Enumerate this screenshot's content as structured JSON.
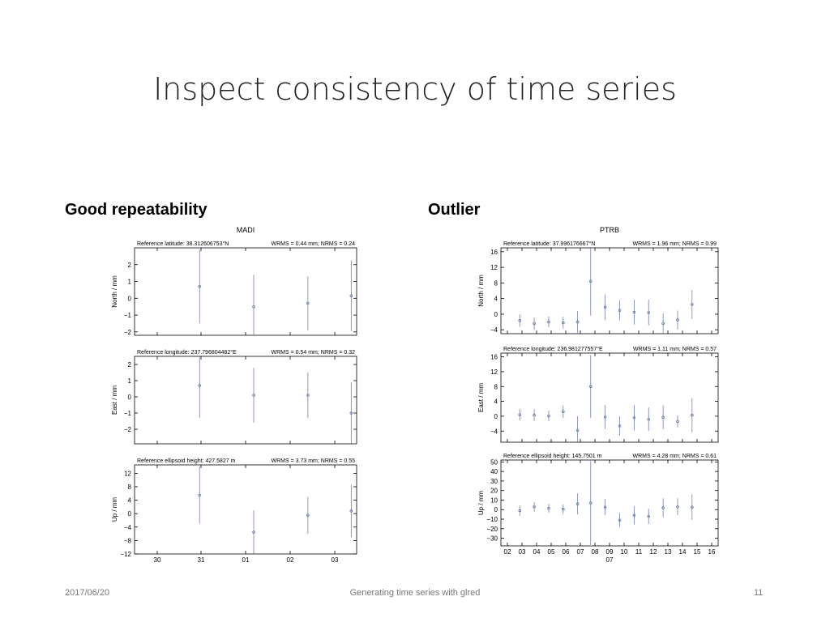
{
  "slide": {
    "title": "Inspect consistency of time series",
    "left_heading": "Good repeatability",
    "right_heading": "Outlier",
    "footer_date": "2017/06/20",
    "footer_center": "Generating time series with glred",
    "footer_page": "11"
  },
  "colors": {
    "axis": "#000000",
    "error_bar": "#5f6fa8",
    "point": "#5f6fa8"
  },
  "chart_data": [
    {
      "type": "scatter",
      "station": "MADI",
      "x_ticks": [
        "30",
        "31",
        "01",
        "02",
        "03"
      ],
      "x_range": [
        29.4,
        33.5
      ],
      "panels": [
        {
          "reference": "Reference latitude: 38.312606753°N",
          "stats": "WRMS = 0.44 mm; NRMS = 0.24",
          "ylabel": "North / mm",
          "ylim": [
            -2.2,
            3.0
          ],
          "yticks": [
            2,
            1,
            0,
            -1,
            -2
          ],
          "ytick_labels": [
            "2",
            "1",
            "0",
            "−1",
            "−2"
          ],
          "points": [
            {
              "x": 30.6,
              "y": 0.7,
              "err": 2.2
            },
            {
              "x": 31.6,
              "y": -0.5,
              "err": 1.9
            },
            {
              "x": 32.6,
              "y": -0.3,
              "err": 1.6
            },
            {
              "x": 33.4,
              "y": 0.15,
              "err": 2.1
            }
          ]
        },
        {
          "reference": "Reference longitude: 237.796804482°E",
          "stats": "WRMS = 0.54 mm; NRMS = 0.32",
          "ylabel": "East / mm",
          "ylim": [
            -2.9,
            2.5
          ],
          "yticks": [
            2,
            1,
            0,
            -1,
            -2
          ],
          "ytick_labels": [
            "2",
            "1",
            "0",
            "−1",
            "−2"
          ],
          "points": [
            {
              "x": 30.6,
              "y": 0.7,
              "err": 2.0
            },
            {
              "x": 31.6,
              "y": 0.1,
              "err": 1.7
            },
            {
              "x": 32.6,
              "y": 0.1,
              "err": 1.4
            },
            {
              "x": 33.4,
              "y": -1.0,
              "err": 1.9
            }
          ]
        },
        {
          "reference": "Reference ellipsoid height: 427.5827 m",
          "stats": "WRMS = 3.73 mm; NRMS = 0.55",
          "ylabel": "Up / mm",
          "ylim": [
            -12,
            14.5
          ],
          "yticks": [
            12,
            8,
            4,
            0,
            -4,
            -8,
            -12
          ],
          "ytick_labels": [
            "12",
            "8",
            "4",
            "0",
            "−4",
            "−8",
            "−12"
          ],
          "points": [
            {
              "x": 30.6,
              "y": 5.5,
              "err": 8.5
            },
            {
              "x": 31.6,
              "y": -5.5,
              "err": 6.5
            },
            {
              "x": 32.6,
              "y": -0.5,
              "err": 5.5
            },
            {
              "x": 33.4,
              "y": 0.8,
              "err": 7.8
            }
          ]
        }
      ]
    },
    {
      "type": "scatter",
      "station": "PTRB",
      "x_ticks": [
        "02",
        "03",
        "04",
        "05",
        "06",
        "07",
        "08",
        "09",
        "10",
        "11",
        "12",
        "13",
        "14",
        "15",
        "16"
      ],
      "x_tick_sublabels": {
        "09": "07"
      },
      "x_range": [
        1.5,
        16.5
      ],
      "panels": [
        {
          "reference": "Reference latitude: 37.996176667°N",
          "stats": "WRMS = 1.96 mm; NRMS = 0.99",
          "ylabel": "North / mm",
          "ylim": [
            -5,
            17
          ],
          "yticks": [
            16,
            12,
            8,
            4,
            0,
            -4
          ],
          "ytick_labels": [
            "16",
            "12",
            "8",
            "4",
            "0",
            "−4"
          ],
          "points": [
            {
              "x": 2.8,
              "y": -1.6,
              "err": 1.6
            },
            {
              "x": 3.8,
              "y": -2.4,
              "err": 1.6
            },
            {
              "x": 4.8,
              "y": -2.0,
              "err": 1.4
            },
            {
              "x": 5.8,
              "y": -2.2,
              "err": 1.5
            },
            {
              "x": 6.8,
              "y": -2.0,
              "err": 2.8
            },
            {
              "x": 7.7,
              "y": 8.4,
              "err": 8.8
            },
            {
              "x": 8.7,
              "y": 1.8,
              "err": 3.3
            },
            {
              "x": 9.7,
              "y": 1.0,
              "err": 2.6
            },
            {
              "x": 10.7,
              "y": 0.5,
              "err": 3.2
            },
            {
              "x": 11.7,
              "y": 0.4,
              "err": 3.3
            },
            {
              "x": 12.7,
              "y": -2.4,
              "err": 2.6
            },
            {
              "x": 13.7,
              "y": -1.5,
              "err": 2.4
            },
            {
              "x": 14.7,
              "y": 2.5,
              "err": 3.7
            }
          ]
        },
        {
          "reference": "Reference longitude: 236.981277557°E",
          "stats": "WRMS = 1.11 mm; NRMS = 0.57",
          "ylabel": "East / mm",
          "ylim": [
            -7,
            17
          ],
          "yticks": [
            16,
            12,
            8,
            4,
            0,
            -4
          ],
          "ytick_labels": [
            "16",
            "12",
            "8",
            "4",
            "0",
            "−4"
          ],
          "points": [
            {
              "x": 2.8,
              "y": 0.4,
              "err": 1.6
            },
            {
              "x": 3.8,
              "y": 0.3,
              "err": 1.6
            },
            {
              "x": 4.8,
              "y": 0.1,
              "err": 1.4
            },
            {
              "x": 5.8,
              "y": 1.2,
              "err": 1.7
            },
            {
              "x": 6.8,
              "y": -3.8,
              "err": 3.8
            },
            {
              "x": 7.7,
              "y": 8.0,
              "err": 8.5
            },
            {
              "x": 8.7,
              "y": -0.2,
              "err": 3.2
            },
            {
              "x": 9.7,
              "y": -2.6,
              "err": 2.6
            },
            {
              "x": 10.7,
              "y": -0.4,
              "err": 3.4
            },
            {
              "x": 11.7,
              "y": -0.8,
              "err": 3.2
            },
            {
              "x": 12.7,
              "y": -0.3,
              "err": 3.2
            },
            {
              "x": 13.7,
              "y": -1.4,
              "err": 1.6
            },
            {
              "x": 14.7,
              "y": 0.3,
              "err": 4.6
            }
          ]
        },
        {
          "reference": "Reference ellipsoid height: 145.7501 m",
          "stats": "WRMS = 4.28 mm; NRMS = 0.61",
          "ylabel": "Up / mm",
          "ylim": [
            -38,
            52
          ],
          "yticks": [
            50,
            40,
            30,
            20,
            10,
            0,
            -10,
            -20,
            -30
          ],
          "ytick_labels": [
            "50",
            "40",
            "30",
            "20",
            "10",
            "0",
            "−10",
            "−20",
            "−30"
          ],
          "points": [
            {
              "x": 2.8,
              "y": -1.0,
              "err": 5.5
            },
            {
              "x": 3.8,
              "y": 3.0,
              "err": 5.0
            },
            {
              "x": 4.8,
              "y": 1.5,
              "err": 4.5
            },
            {
              "x": 5.8,
              "y": 0.5,
              "err": 5.0
            },
            {
              "x": 6.8,
              "y": 6.0,
              "err": 11.0
            },
            {
              "x": 7.7,
              "y": 7.0,
              "err": 44.0
            },
            {
              "x": 8.7,
              "y": 2.5,
              "err": 8.5
            },
            {
              "x": 9.7,
              "y": -11.0,
              "err": 7.5
            },
            {
              "x": 10.7,
              "y": -6.0,
              "err": 9.5
            },
            {
              "x": 11.7,
              "y": -7.0,
              "err": 8.0
            },
            {
              "x": 12.7,
              "y": 2.0,
              "err": 10.0
            },
            {
              "x": 13.7,
              "y": 3.0,
              "err": 9.0
            },
            {
              "x": 14.7,
              "y": 2.5,
              "err": 13.5
            }
          ]
        }
      ]
    }
  ]
}
